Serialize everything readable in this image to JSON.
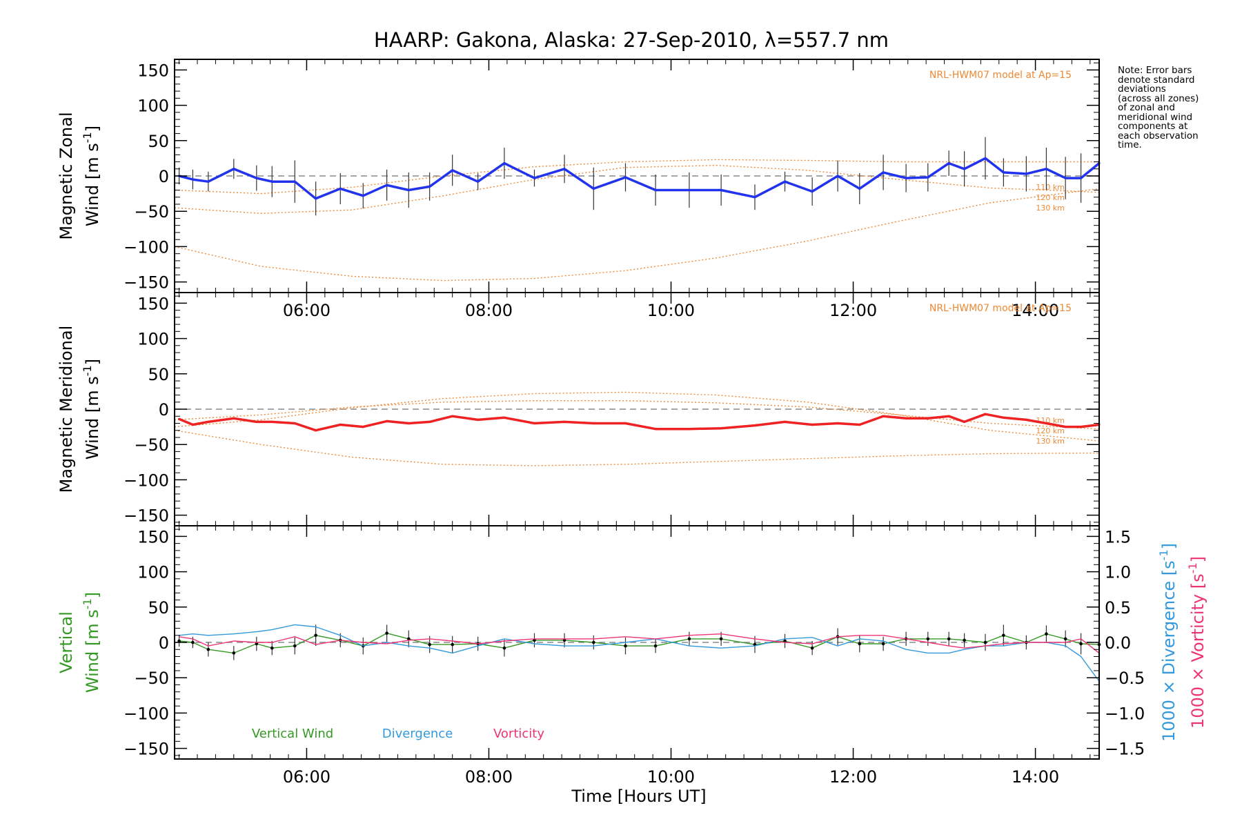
{
  "title": "HAARP: Gakona,  Alaska: 27-Sep-2010, λ=557.7 nm",
  "note": "Note: Error bars\ndenote standard\ndeviations\n(across all zones)\nof zonal and\nmeridional wind\ncomponents at\neach observation\ntime.",
  "xlabel": "Time [Hours UT]",
  "colors": {
    "zonal": "#2233ee",
    "meridional": "#ee2222",
    "vertical": "#339922",
    "divergence": "#3399dd",
    "vorticity": "#ee3377",
    "model": "#ee8833",
    "zero_line": "#888888"
  },
  "chart_data": [
    {
      "type": "line",
      "panel": "zonal",
      "ylabel_line1": "Magnetic Zonal",
      "ylabel_line2": "Wind [m s",
      "ylabel_sup": "-1",
      "ylabel_end": "]",
      "ylim": [
        -165,
        165
      ],
      "yticks": [
        150,
        100,
        50,
        0,
        -50,
        -100,
        -150
      ],
      "yticklabels": [
        "150",
        "100",
        "50",
        "0",
        "−50",
        "−100",
        "−150"
      ],
      "xlim": [
        4.55,
        14.7
      ],
      "xticks": [
        6,
        8,
        10,
        12,
        14
      ],
      "xticklabels": [
        "06:00",
        "08:00",
        "10:00",
        "12:00",
        "14:00"
      ],
      "model_label": "NRL-HWM07 model at Ap=15",
      "model_altitude_labels": [
        "110 km",
        "120 km",
        "130 km"
      ],
      "model_curves": [
        {
          "name": "110 km",
          "x": [
            4.55,
            5.5,
            6.5,
            7.5,
            8.5,
            9.5,
            10.5,
            11.5,
            12.5,
            13.5,
            14.7
          ],
          "y": [
            -100,
            -128,
            -142,
            -148,
            -145,
            -134,
            -116,
            -92,
            -64,
            -38,
            -18
          ]
        },
        {
          "name": "120 km",
          "x": [
            4.55,
            5.5,
            6.5,
            7.5,
            8.5,
            9.5,
            10.5,
            11.5,
            12.5,
            13.5,
            14.7
          ],
          "y": [
            -45,
            -53,
            -48,
            -28,
            -5,
            12,
            15,
            8,
            -5,
            -17,
            -23
          ]
        },
        {
          "name": "130 km",
          "x": [
            4.55,
            5.5,
            6.5,
            7.5,
            8.5,
            9.5,
            10.5,
            11.5,
            12.5,
            13.5,
            14.7
          ],
          "y": [
            -20,
            -25,
            -16,
            0,
            13,
            20,
            23,
            22,
            20,
            20,
            20
          ]
        }
      ],
      "series": [
        {
          "name": "Magnetic Zonal Wind",
          "x": [
            4.6,
            4.75,
            4.92,
            5.2,
            5.45,
            5.62,
            5.87,
            6.1,
            6.37,
            6.62,
            6.88,
            7.12,
            7.35,
            7.6,
            7.88,
            8.17,
            8.5,
            8.83,
            9.15,
            9.5,
            9.83,
            10.2,
            10.55,
            10.92,
            11.25,
            11.55,
            11.83,
            12.07,
            12.33,
            12.58,
            12.82,
            13.05,
            13.22,
            13.45,
            13.65,
            13.9,
            14.12,
            14.33,
            14.5,
            14.7
          ],
          "y": [
            0,
            -5,
            -8,
            10,
            -3,
            -8,
            -8,
            -32,
            -18,
            -28,
            -13,
            -20,
            -15,
            8,
            -8,
            18,
            -3,
            10,
            -18,
            -2,
            -20,
            -20,
            -20,
            -30,
            -8,
            -22,
            0,
            -18,
            5,
            -3,
            -2,
            18,
            10,
            25,
            5,
            3,
            10,
            -3,
            -3,
            18
          ],
          "err": [
            12,
            14,
            14,
            14,
            18,
            22,
            30,
            24,
            22,
            18,
            22,
            25,
            20,
            22,
            12,
            22,
            12,
            20,
            30,
            20,
            22,
            25,
            22,
            18,
            14,
            20,
            22,
            22,
            25,
            20,
            20,
            18,
            25,
            30,
            20,
            25,
            30,
            30,
            35,
            25
          ]
        }
      ]
    },
    {
      "type": "line",
      "panel": "meridional",
      "ylabel_line1": "Magnetic Meridional",
      "ylabel_line2": "Wind [m s",
      "ylabel_sup": "-1",
      "ylabel_end": "]",
      "ylim": [
        -165,
        165
      ],
      "yticks": [
        150,
        100,
        50,
        0,
        -50,
        -100,
        -150
      ],
      "yticklabels": [
        "150",
        "100",
        "50",
        "0",
        "−50",
        "−100",
        "−150"
      ],
      "xlim": [
        4.55,
        14.7
      ],
      "model_label": "NRL-HWM07 model at Ap=15",
      "model_altitude_labels": [
        "110 km",
        "120 km",
        "130 km"
      ],
      "model_curves": [
        {
          "name": "110 km",
          "x": [
            4.55,
            5.5,
            6.5,
            7.5,
            8.5,
            9.5,
            10.5,
            11.5,
            12.5,
            13.5,
            14.7
          ],
          "y": [
            -30,
            -50,
            -68,
            -78,
            -80,
            -78,
            -74,
            -70,
            -66,
            -63,
            -62
          ]
        },
        {
          "name": "120 km",
          "x": [
            4.55,
            5.5,
            6.5,
            7.5,
            8.5,
            9.5,
            10.5,
            11.5,
            12.5,
            13.5,
            14.7
          ],
          "y": [
            -25,
            -15,
            2,
            15,
            22,
            24,
            20,
            10,
            -8,
            -30,
            -45
          ]
        },
        {
          "name": "130 km",
          "x": [
            4.55,
            5.5,
            6.5,
            7.5,
            8.5,
            9.5,
            10.5,
            11.5,
            12.5,
            13.5,
            14.7
          ],
          "y": [
            -15,
            -8,
            3,
            10,
            12,
            12,
            9,
            3,
            -8,
            -20,
            -28
          ]
        }
      ],
      "series": [
        {
          "name": "Magnetic Meridional Wind",
          "x": [
            4.6,
            4.75,
            4.92,
            5.2,
            5.45,
            5.62,
            5.87,
            6.1,
            6.37,
            6.62,
            6.88,
            7.12,
            7.35,
            7.6,
            7.88,
            8.17,
            8.5,
            8.83,
            9.15,
            9.5,
            9.83,
            10.2,
            10.55,
            10.92,
            11.25,
            11.55,
            11.83,
            12.07,
            12.33,
            12.58,
            12.82,
            13.05,
            13.22,
            13.45,
            13.65,
            13.9,
            14.12,
            14.33,
            14.5,
            14.7
          ],
          "y": [
            -14,
            -22,
            -18,
            -13,
            -18,
            -18,
            -20,
            -30,
            -22,
            -25,
            -17,
            -20,
            -18,
            -10,
            -15,
            -12,
            -20,
            -18,
            -20,
            -20,
            -28,
            -28,
            -27,
            -23,
            -18,
            -22,
            -20,
            -22,
            -10,
            -13,
            -13,
            -10,
            -18,
            -7,
            -12,
            -15,
            -20,
            -25,
            -25,
            -22
          ]
        }
      ]
    },
    {
      "type": "line",
      "panel": "vertical",
      "ylabel_line1": "Vertical",
      "ylabel_line2": "Wind [m s",
      "ylabel_sup": "-1",
      "ylabel_end": "]",
      "ylim": [
        -165,
        165
      ],
      "yticks": [
        150,
        100,
        50,
        0,
        -50,
        -100,
        -150
      ],
      "yticklabels": [
        "150",
        "100",
        "50",
        "0",
        "−50",
        "−100",
        "−150"
      ],
      "y2lim": [
        -1.65,
        1.65
      ],
      "y2ticks": [
        1.5,
        1.0,
        0.5,
        0.0,
        -0.5,
        -1.0,
        -1.5
      ],
      "y2ticklabels": [
        "1.5",
        "1.0",
        "0.5",
        "0.0",
        "−0.5",
        "−1.0",
        "−1.5"
      ],
      "y2label_div": "1000 × Divergence [s",
      "y2label_vort": "1000 × Vorticity [s",
      "y2label_sup": "-1",
      "y2label_end": "]",
      "xlim": [
        4.55,
        14.7
      ],
      "xticks": [
        6,
        8,
        10,
        12,
        14
      ],
      "xticklabels": [
        "06:00",
        "08:00",
        "10:00",
        "12:00",
        "14:00"
      ],
      "legend": [
        "Vertical Wind",
        "Divergence",
        "Vorticity"
      ],
      "series": [
        {
          "name": "Vertical Wind",
          "x": [
            4.6,
            4.75,
            4.92,
            5.2,
            5.45,
            5.62,
            5.87,
            6.1,
            6.37,
            6.62,
            6.88,
            7.12,
            7.35,
            7.6,
            7.88,
            8.17,
            8.5,
            8.83,
            9.15,
            9.5,
            9.83,
            10.2,
            10.55,
            10.92,
            11.25,
            11.55,
            11.83,
            12.07,
            12.33,
            12.58,
            12.82,
            13.05,
            13.22,
            13.45,
            13.65,
            13.9,
            14.12,
            14.33,
            14.5,
            14.7
          ],
          "y": [
            2,
            0,
            -10,
            -15,
            -2,
            -8,
            -5,
            10,
            3,
            -5,
            13,
            5,
            -3,
            -3,
            -2,
            -8,
            3,
            3,
            0,
            -5,
            -5,
            5,
            5,
            -3,
            2,
            -8,
            8,
            -2,
            -2,
            5,
            5,
            5,
            3,
            0,
            10,
            0,
            12,
            5,
            -2,
            -3
          ],
          "err": [
            8,
            8,
            10,
            10,
            10,
            10,
            12,
            15,
            10,
            12,
            12,
            12,
            12,
            12,
            10,
            12,
            10,
            10,
            10,
            12,
            10,
            10,
            10,
            12,
            10,
            10,
            12,
            12,
            10,
            10,
            10,
            10,
            10,
            12,
            15,
            10,
            12,
            12,
            15,
            15
          ]
        },
        {
          "name": "Divergence",
          "x": [
            4.6,
            4.75,
            4.92,
            5.2,
            5.45,
            5.62,
            5.87,
            6.1,
            6.37,
            6.62,
            6.88,
            7.12,
            7.35,
            7.6,
            7.88,
            8.17,
            8.5,
            8.83,
            9.15,
            9.5,
            9.83,
            10.2,
            10.55,
            10.92,
            11.25,
            11.55,
            11.83,
            12.07,
            12.33,
            12.58,
            12.82,
            13.05,
            13.22,
            13.45,
            13.65,
            13.9,
            14.12,
            14.33,
            14.5,
            14.7
          ],
          "y": [
            0.1,
            0.12,
            0.1,
            0.12,
            0.15,
            0.18,
            0.25,
            0.22,
            0.1,
            -0.05,
            0.0,
            -0.05,
            -0.08,
            -0.15,
            -0.05,
            0.05,
            -0.02,
            -0.05,
            -0.05,
            0.0,
            0.05,
            -0.05,
            -0.08,
            -0.05,
            0.05,
            0.07,
            -0.05,
            0.05,
            0.02,
            -0.1,
            -0.15,
            -0.15,
            -0.1,
            -0.05,
            -0.05,
            0.0,
            0.0,
            -0.05,
            -0.2,
            -0.55
          ]
        },
        {
          "name": "Vorticity",
          "x": [
            4.6,
            4.75,
            4.92,
            5.2,
            5.45,
            5.62,
            5.87,
            6.1,
            6.37,
            6.62,
            6.88,
            7.12,
            7.35,
            7.6,
            7.88,
            8.17,
            8.5,
            8.83,
            9.15,
            9.5,
            9.83,
            10.2,
            10.55,
            10.92,
            11.25,
            11.55,
            11.83,
            12.07,
            12.33,
            12.58,
            12.82,
            13.05,
            13.22,
            13.45,
            13.65,
            13.9,
            14.12,
            14.33,
            14.5,
            14.7
          ],
          "y": [
            0.08,
            0.05,
            -0.05,
            0.02,
            0.0,
            0.0,
            0.08,
            -0.03,
            0.03,
            0.0,
            -0.02,
            0.03,
            0.05,
            0.02,
            -0.02,
            0.02,
            0.05,
            0.05,
            0.05,
            0.08,
            0.05,
            0.1,
            0.12,
            0.05,
            0.0,
            -0.02,
            0.08,
            0.1,
            0.1,
            0.05,
            0.0,
            -0.05,
            -0.08,
            -0.05,
            -0.02,
            0.0,
            0.0,
            0.0,
            0.05,
            -0.15
          ]
        }
      ]
    }
  ]
}
